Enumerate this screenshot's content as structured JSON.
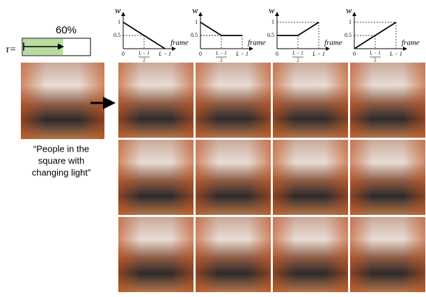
{
  "tau": {
    "symbol": "τ=",
    "value": 60,
    "label": "60%"
  },
  "prompt": [
    "“People in the",
    "square with",
    "changing light”"
  ],
  "axis": {
    "y_label": "w",
    "x_label": "frame",
    "y_ticks": [
      {
        "value": 1,
        "label": "1"
      },
      {
        "value": 0.5,
        "label": "0.5"
      }
    ],
    "origin": "0",
    "x_mid_num": "L − 1",
    "x_mid_den": "2",
    "x_end": "L − 1"
  },
  "plots": [
    {
      "w": [
        1,
        0.5,
        0
      ]
    },
    {
      "w": [
        1,
        0.5,
        0.5
      ]
    },
    {
      "w": [
        0.5,
        0.5,
        1
      ]
    },
    {
      "w": [
        0,
        0.5,
        1
      ]
    }
  ]
}
